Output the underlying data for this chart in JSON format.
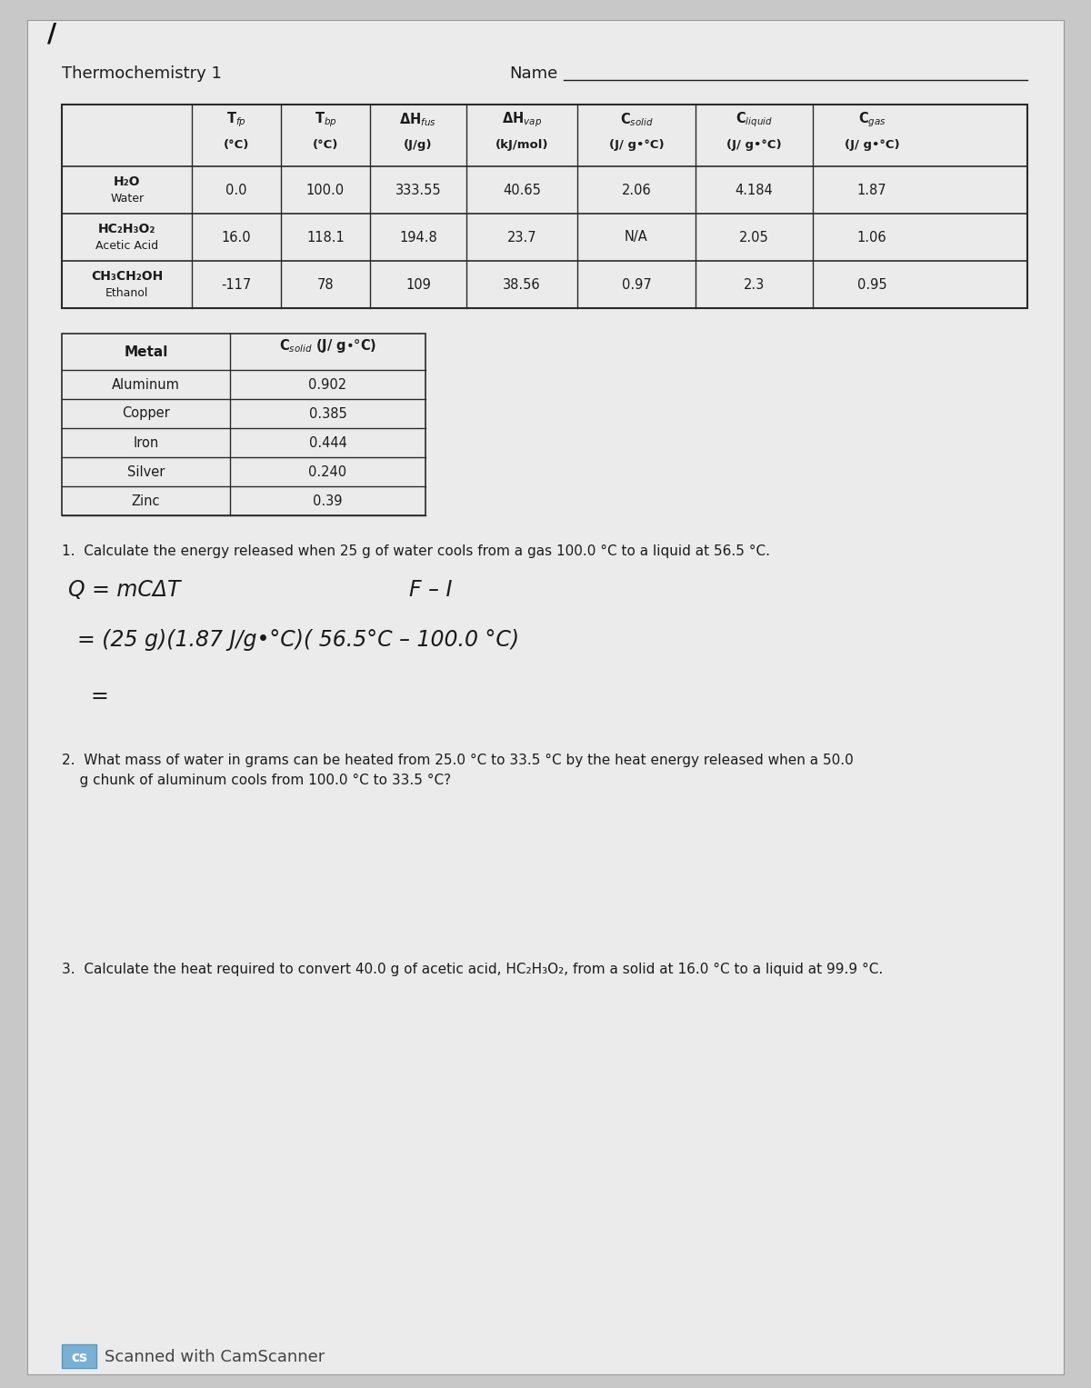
{
  "title": "Thermochemistry 1",
  "name_label": "Name",
  "bg_color": "#c8c8c8",
  "paper_color": "#ebebeb",
  "main_table_headers": [
    [
      "",
      "T$_{fp}$\n(°C)",
      "T$_{bp}$\n(°C)",
      "ΔH$_{fus}$\n(J/g)",
      "ΔH$_{vap}$\n(kJ/mol)",
      "C$_{solid}$\n(J/ g•°C)",
      "C$_{liquid}$\n(J/ g•°C)",
      "C$_{gas}$\n(J/ g•°C)"
    ]
  ],
  "main_table_rows": [
    [
      "H₂O\nWater",
      "0.0",
      "100.0",
      "333.55",
      "40.65",
      "2.06",
      "4.184",
      "1.87"
    ],
    [
      "HC₂H₃O₂\nAcetic Acid",
      "16.0",
      "118.1",
      "194.8",
      "23.7",
      "N/A",
      "2.05",
      "1.06"
    ],
    [
      "CH₃CH₂OH\nEthanol",
      "-117",
      "78",
      "109",
      "38.56",
      "0.97",
      "2.3",
      "0.95"
    ]
  ],
  "metals_headers": [
    "Metal",
    "C solid (J/ g•°C)"
  ],
  "metals_rows": [
    [
      "Aluminum",
      "0.902"
    ],
    [
      "Copper",
      "0.385"
    ],
    [
      "Iron",
      "0.444"
    ],
    [
      "Silver",
      "0.240"
    ],
    [
      "Zinc",
      "0.39"
    ]
  ],
  "question1": "1.  Calculate the energy released when 25 g of water cools from a gas 100.0 °C to a liquid at 56.5 °C.",
  "question2_line1": "2.  What mass of water in grams can be heated from 25.0 °C to 33.5 °C by the heat energy released when a 50.0",
  "question2_line2": "    g chunk of aluminum cools from 100.0 °C to 33.5 °C?",
  "question3": "3.  Calculate the heat required to convert 40.0 g of acetic acid, HC₂H₃O₂, from a solid at 16.0 °C to a liquid at 99.9 °C.",
  "footer": "Scanned with CamScanner",
  "text_color": "#1c1c1c",
  "line_color": "#2a2a2a"
}
